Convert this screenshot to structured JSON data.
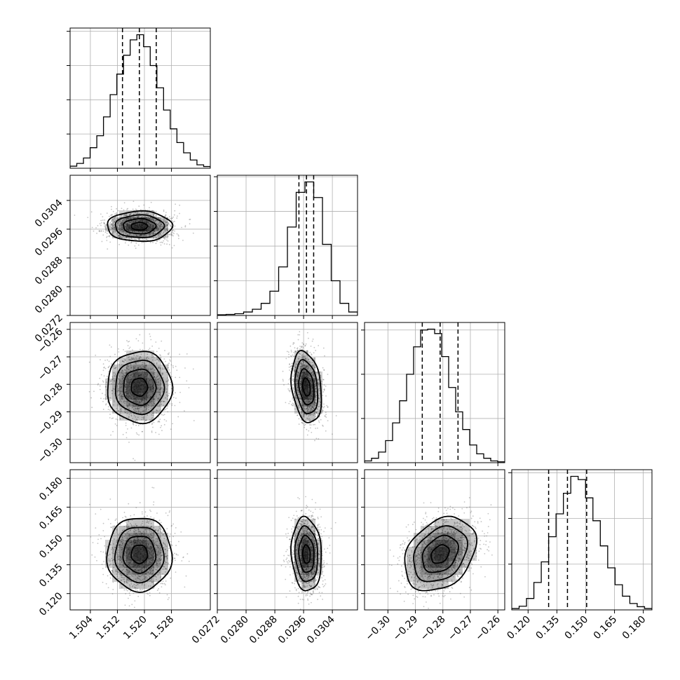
{
  "chart_data": {
    "type": "corner",
    "n_params": 4,
    "params": [
      {
        "range": [
          1.498,
          1.5395
        ],
        "ticks": [
          "1.504",
          "1.512",
          "1.520",
          "1.528"
        ],
        "quantiles": [
          1.5135,
          1.5185,
          1.5235
        ],
        "mean": 1.5185,
        "sd": 0.0048
      },
      {
        "range": [
          0.0272,
          0.0311
        ],
        "ticks": [
          "0.0272",
          "0.0280",
          "0.0288",
          "0.0296",
          "0.0304"
        ],
        "quantiles": [
          0.02947,
          0.02968,
          0.02988
        ],
        "mean": 0.02968,
        "sd": 0.00021
      },
      {
        "range": [
          -0.3085,
          -0.2575
        ],
        "ticks": [
          "-0.30",
          "-0.29",
          "-0.28",
          "-0.27",
          "-0.26"
        ],
        "quantiles": [
          -0.2875,
          -0.281,
          -0.2745
        ],
        "mean": -0.281,
        "sd": 0.0065
      },
      {
        "range": [
          0.1115,
          0.1845
        ],
        "ticks": [
          "0.120",
          "0.135",
          "0.150",
          "0.165",
          "0.180"
        ],
        "quantiles": [
          0.1307,
          0.1405,
          0.1505
        ],
        "mean": 0.1405,
        "sd": 0.0096
      }
    ],
    "histograms": [
      [
        6,
        14,
        30,
        60,
        95,
        150,
        215,
        275,
        330,
        375,
        390,
        355,
        300,
        235,
        170,
        115,
        75,
        45,
        24,
        10,
        5
      ],
      [
        2,
        3,
        5,
        10,
        18,
        35,
        70,
        140,
        255,
        355,
        385,
        340,
        205,
        100,
        35,
        10
      ],
      [
        4,
        10,
        24,
        50,
        90,
        140,
        200,
        262,
        300,
        302,
        292,
        240,
        170,
        115,
        75,
        40,
        20,
        10,
        4,
        2
      ],
      [
        3,
        8,
        25,
        60,
        105,
        160,
        210,
        255,
        292,
        285,
        245,
        195,
        140,
        92,
        55,
        30,
        14,
        7,
        3
      ]
    ],
    "correlations": {
      "1-0": 0.0,
      "2-0": 0.0,
      "2-1": -0.25,
      "3-0": 0.0,
      "3-1": -0.1,
      "3-2": 0.3
    },
    "quantile_levels": [
      0.16,
      0.5,
      0.84
    ],
    "contour_levels_sigma": [
      0.5,
      1.0,
      1.5,
      2.0
    ],
    "grid": true,
    "colors": {
      "line": "#000000",
      "grid": "#b0b0b0",
      "density": "#000000",
      "points": "#555555"
    }
  }
}
